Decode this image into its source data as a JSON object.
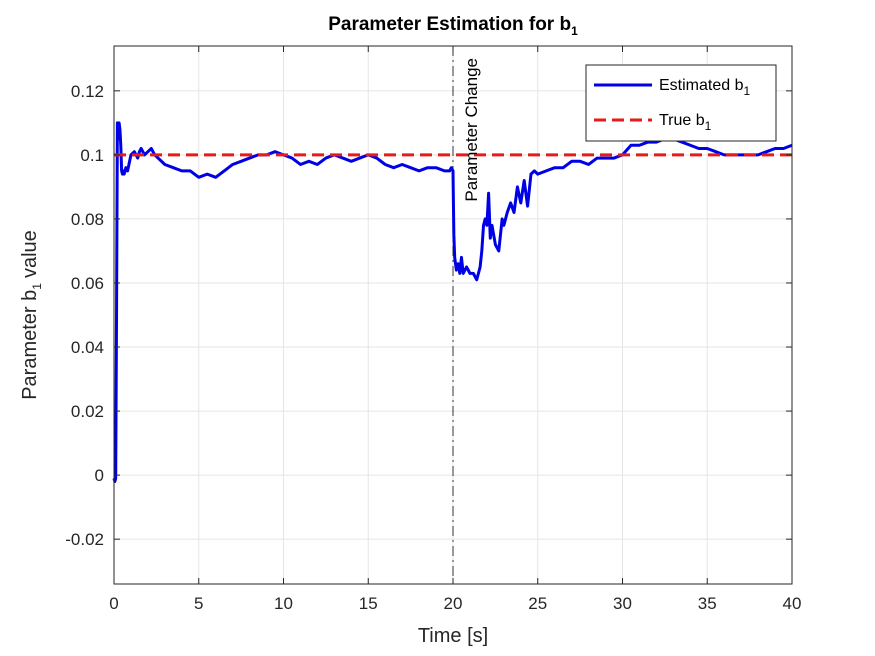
{
  "chart_data": {
    "type": "line",
    "title": "Parameter Estimation for b",
    "title_sub": "1",
    "xlabel": "Time [s]",
    "ylabel_pre": "Parameter b",
    "ylabel_sub": "1",
    "ylabel_post": "value",
    "xlim": [
      0,
      40
    ],
    "ylim": [
      -0.034,
      0.134
    ],
    "xticks": [
      0,
      5,
      10,
      15,
      20,
      25,
      30,
      35,
      40
    ],
    "xtick_labels": [
      "0",
      "5",
      "10",
      "15",
      "20",
      "25",
      "30",
      "35",
      "40"
    ],
    "yticks": [
      -0.02,
      0,
      0.02,
      0.04,
      0.06,
      0.08,
      0.1,
      0.12
    ],
    "ytick_labels": [
      "-0.02",
      "0",
      "0.02",
      "0.04",
      "0.06",
      "0.08",
      "0.1",
      "0.12"
    ],
    "grid": true,
    "legend_position": "top-right",
    "series": [
      {
        "name": "Estimated b",
        "name_sub": "1",
        "color": "#0000e6",
        "style": "solid",
        "x": [
          0,
          0.05,
          0.1,
          0.15,
          0.2,
          0.25,
          0.3,
          0.35,
          0.4,
          0.45,
          0.5,
          0.55,
          0.6,
          0.7,
          0.8,
          1.0,
          1.2,
          1.4,
          1.5,
          1.6,
          1.8,
          2.0,
          2.2,
          2.4,
          2.6,
          3.0,
          3.5,
          4.0,
          4.5,
          5.0,
          5.5,
          6.0,
          6.5,
          7.0,
          7.5,
          8.0,
          8.5,
          9.0,
          9.5,
          10.0,
          10.5,
          11.0,
          11.5,
          12.0,
          12.5,
          13.0,
          13.5,
          14.0,
          14.5,
          15.0,
          15.5,
          16.0,
          16.5,
          17.0,
          17.5,
          18.0,
          18.5,
          19.0,
          19.5,
          19.8,
          19.9,
          20.0,
          20.05,
          20.1,
          20.2,
          20.3,
          20.4,
          20.5,
          20.6,
          20.8,
          21.0,
          21.2,
          21.4,
          21.6,
          21.7,
          21.8,
          21.9,
          22.0,
          22.1,
          22.2,
          22.3,
          22.5,
          22.7,
          22.9,
          23.0,
          23.2,
          23.4,
          23.6,
          23.8,
          24.0,
          24.2,
          24.4,
          24.6,
          24.8,
          25.0,
          25.5,
          26.0,
          26.5,
          27.0,
          27.5,
          28.0,
          28.5,
          29.0,
          29.5,
          30.0,
          30.5,
          31.0,
          31.5,
          32.0,
          32.5,
          33.0,
          33.5,
          34.0,
          34.5,
          35.0,
          35.5,
          36.0,
          36.5,
          37.0,
          37.5,
          38.0,
          38.5,
          39.0,
          39.5,
          40.0
        ],
        "y": [
          -0.001,
          -0.002,
          -0.001,
          0.05,
          0.11,
          0.105,
          0.11,
          0.108,
          0.103,
          0.095,
          0.094,
          0.095,
          0.094,
          0.096,
          0.095,
          0.1,
          0.101,
          0.099,
          0.101,
          0.102,
          0.1,
          0.101,
          0.102,
          0.1,
          0.099,
          0.097,
          0.096,
          0.095,
          0.095,
          0.093,
          0.094,
          0.093,
          0.095,
          0.097,
          0.098,
          0.099,
          0.1,
          0.1,
          0.101,
          0.1,
          0.099,
          0.097,
          0.098,
          0.097,
          0.099,
          0.1,
          0.099,
          0.098,
          0.099,
          0.1,
          0.099,
          0.097,
          0.096,
          0.097,
          0.096,
          0.095,
          0.096,
          0.096,
          0.095,
          0.095,
          0.096,
          0.095,
          0.075,
          0.068,
          0.064,
          0.066,
          0.063,
          0.068,
          0.063,
          0.065,
          0.063,
          0.063,
          0.061,
          0.065,
          0.07,
          0.078,
          0.08,
          0.078,
          0.088,
          0.074,
          0.078,
          0.072,
          0.07,
          0.08,
          0.078,
          0.082,
          0.085,
          0.082,
          0.09,
          0.085,
          0.092,
          0.084,
          0.094,
          0.095,
          0.094,
          0.095,
          0.096,
          0.096,
          0.098,
          0.098,
          0.097,
          0.099,
          0.099,
          0.099,
          0.1,
          0.103,
          0.103,
          0.104,
          0.104,
          0.105,
          0.105,
          0.104,
          0.103,
          0.102,
          0.102,
          0.101,
          0.1,
          0.1,
          0.1,
          0.1,
          0.1,
          0.101,
          0.102,
          0.102,
          0.103
        ]
      },
      {
        "name": "True b",
        "name_sub": "1",
        "color": "#e61a1a",
        "style": "dashed",
        "x": [
          0,
          40
        ],
        "y": [
          0.1,
          0.1
        ]
      }
    ],
    "annotations": [
      {
        "type": "vline",
        "x": 20,
        "style": "dash-dot",
        "color": "#333333",
        "text": "Parameter Change"
      }
    ]
  }
}
